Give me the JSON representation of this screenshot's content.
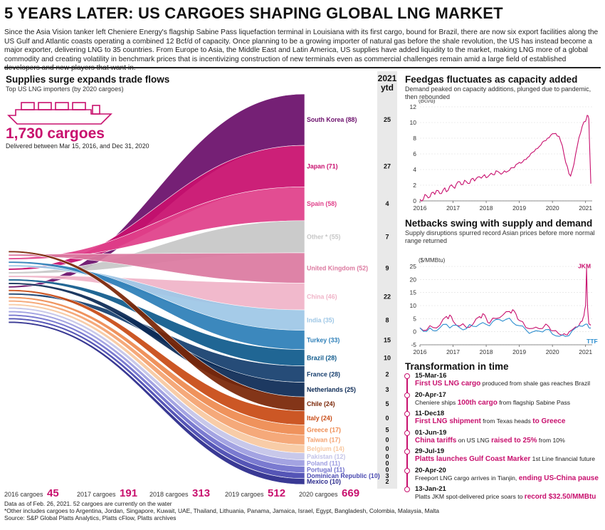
{
  "header": {
    "title": "5 YEARS LATER: US CARGOES SHAPING GLOBAL LNG MARKET",
    "intro": "Since the Asia Vision tanker left Cheniere Energy's flagship Sabine Pass liquefaction terminal in Louisiana with its first cargo, bound for Brazil, there are now six export facilities along the US Gulf and Atlantic coasts operating a combined 12 Bcf/d of capacity. Once planning to be a growing importer of natural gas before the shale revolution, the US has instead become a major exporter, delivering LNG to 35 countries. From Europe to Asia, the Middle East and Latin America, US supplies have added liquidity to the market, making LNG more of a global commodity and creating volatility in benchmark prices that is incentivizing construction of new terminals even as commercial challenges remain amid a large field of established developers and new players that want in."
  },
  "sankey": {
    "title": "Supplies surge expands trade flows",
    "subtitle": "Top US LNG importers (by 2020 cargoes)",
    "total": "1,730 cargoes",
    "total_note": "Delivered between Mar 15, 2016, and Dec 31, 2020",
    "ytd_header": "2021 ytd"
  },
  "chart_data": [
    {
      "type": "area",
      "chart": "sankey",
      "title": "Supplies surge expands trade flows",
      "years": [
        {
          "label": "2016 cargoes",
          "value": "45"
        },
        {
          "label": "2017 cargoes",
          "value": "191"
        },
        {
          "label": "2018 cargoes",
          "value": "313"
        },
        {
          "label": "2019 cargoes",
          "value": "512"
        },
        {
          "label": "2020 cargoes",
          "value": "669"
        }
      ],
      "countries": [
        {
          "name": "South Korea",
          "value": 88,
          "ytd": "25",
          "label": "South Korea (88)",
          "color": "#6b0f6b",
          "start": 10
        },
        {
          "name": "Japan",
          "value": 71,
          "ytd": "27",
          "label": "Japan (71)",
          "color": "#c80f6e",
          "start": 5
        },
        {
          "name": "Spain",
          "value": 58,
          "ytd": "4",
          "label": "Spain (58)",
          "color": "#e0408a",
          "start": 2
        },
        {
          "name": "Other",
          "value": 55,
          "ytd": "7",
          "label": "Other * (55)",
          "color": "#c7c7c7",
          "start": 6
        },
        {
          "name": "United Kingdom",
          "value": 52,
          "ytd": "9",
          "label": "United Kingdom (52)",
          "color": "#dc7aa0",
          "start": 1
        },
        {
          "name": "China",
          "value": 46,
          "ytd": "22",
          "label": "China (46)",
          "color": "#f0b4c8",
          "start": 7
        },
        {
          "name": "India",
          "value": 35,
          "ytd": "8",
          "label": "India (35)",
          "color": "#9ec7e6",
          "start": 4
        },
        {
          "name": "Turkey",
          "value": 33,
          "ytd": "15",
          "label": "Turkey (33)",
          "color": "#2d7fb8",
          "start": 3
        },
        {
          "name": "Brazil",
          "value": 28,
          "ytd": "10",
          "label": "Brazil (28)",
          "color": "#0f5a8c",
          "start": 8
        },
        {
          "name": "France",
          "value": 28,
          "ytd": "2",
          "label": "France (28)",
          "color": "#163e6e",
          "start": 12
        },
        {
          "name": "Netherlands",
          "value": 25,
          "ytd": "3",
          "label": "Netherlands (25)",
          "color": "#0c2a55",
          "start": 9
        },
        {
          "name": "Chile",
          "value": 24,
          "ytd": "5",
          "label": "Chile (24)",
          "color": "#7a2606",
          "start": 0
        },
        {
          "name": "Italy",
          "value": 24,
          "ytd": "0",
          "label": "Italy (24)",
          "color": "#c84a14",
          "start": 11
        },
        {
          "name": "Greece",
          "value": 17,
          "ytd": "5",
          "label": "Greece (17)",
          "color": "#ee8a50",
          "start": 13
        },
        {
          "name": "Taiwan",
          "value": 17,
          "ytd": "0",
          "label": "Taiwan (17)",
          "color": "#f4a270",
          "start": 14
        },
        {
          "name": "Belgium",
          "value": 14,
          "ytd": "0",
          "label": "Belgium (14)",
          "color": "#f8c8a0",
          "start": 15
        },
        {
          "name": "Pakistan",
          "value": 12,
          "ytd": "0",
          "label": "Pakistan (12)",
          "color": "#c4c4e8",
          "start": 16
        },
        {
          "name": "Poland",
          "value": 11,
          "ytd": "0",
          "label": "Poland (11)",
          "color": "#9c9ce0",
          "start": 17
        },
        {
          "name": "Portugal",
          "value": 11,
          "ytd": "0",
          "label": "Portugal (11)",
          "color": "#7070cc",
          "start": 18
        },
        {
          "name": "Dominican Republic",
          "value": 10,
          "ytd": "3",
          "label": "Dominican Republic (10)",
          "color": "#4848b0",
          "start": 19
        },
        {
          "name": "Mexico",
          "value": 10,
          "ytd": "2",
          "label": "Mexico (10)",
          "color": "#2a2a8c",
          "start": 20
        }
      ]
    },
    {
      "type": "line",
      "title": "Feedgas fluctuates as capacity added",
      "subtitle": "Demand peaked on capacity additions, plunged due to pandemic, then rebounded",
      "ylabel": "(Bcf/d)",
      "ylim": [
        0,
        12
      ],
      "yticks": [
        "12",
        "10",
        "8",
        "6",
        "4",
        "2",
        "0"
      ],
      "xticks": [
        "2016",
        "2017",
        "2018",
        "2019",
        "2020",
        "2021"
      ],
      "xlim": [
        2016.0,
        2021.2
      ],
      "color": "#c8106e",
      "series": [
        {
          "x": [
            2016.0,
            2016.1,
            2016.2,
            2016.3,
            2016.4,
            2016.5,
            2016.6,
            2016.7,
            2016.8,
            2016.9,
            2017.0,
            2017.1,
            2017.2,
            2017.3,
            2017.4,
            2017.5,
            2017.6,
            2017.7,
            2017.8,
            2017.9,
            2018.0,
            2018.1,
            2018.2,
            2018.3,
            2018.4,
            2018.5,
            2018.6,
            2018.7,
            2018.8,
            2018.9,
            2019.0,
            2019.1,
            2019.2,
            2019.3,
            2019.4,
            2019.5,
            2019.6,
            2019.7,
            2019.8,
            2019.9,
            2020.0,
            2020.1,
            2020.2,
            2020.3,
            2020.4,
            2020.5,
            2020.55,
            2020.6,
            2020.7,
            2020.8,
            2020.9,
            2021.0,
            2021.05,
            2021.1,
            2021.13,
            2021.16
          ],
          "y": [
            0.2,
            0.3,
            0.8,
            0.5,
            1.0,
            1.2,
            0.9,
            1.5,
            1.3,
            1.9,
            1.7,
            2.0,
            2.4,
            2.2,
            2.6,
            2.3,
            2.8,
            2.7,
            3.0,
            3.2,
            3.1,
            3.4,
            3.3,
            3.7,
            3.5,
            3.6,
            3.8,
            4.0,
            4.2,
            4.5,
            4.8,
            5.0,
            5.4,
            5.8,
            6.2,
            6.5,
            6.8,
            7.5,
            7.8,
            8.2,
            8.6,
            8.5,
            8.1,
            7.0,
            5.0,
            3.6,
            3.2,
            3.8,
            5.8,
            8.0,
            9.6,
            10.3,
            11.0,
            10.4,
            6.0,
            2.2
          ]
        }
      ]
    },
    {
      "type": "line",
      "title": "Netbacks swing with supply and demand",
      "subtitle": "Supply disruptions spurred record Asian prices before more normal range returned",
      "ylabel": "($/MMBtu)",
      "ylim": [
        -5,
        25
      ],
      "yticks": [
        "25",
        "20",
        "15",
        "10",
        "5",
        "0",
        "-5"
      ],
      "xticks": [
        "2016",
        "2017",
        "2018",
        "2019",
        "2020",
        "2021"
      ],
      "xlim": [
        2016.0,
        2021.2
      ],
      "series": [
        {
          "name": "JKM",
          "color": "#c8106e",
          "x": [
            2016.0,
            2016.2,
            2016.4,
            2016.6,
            2016.8,
            2016.9,
            2017.0,
            2017.2,
            2017.4,
            2017.6,
            2017.8,
            2017.9,
            2018.0,
            2018.1,
            2018.3,
            2018.5,
            2018.7,
            2018.8,
            2018.9,
            2019.0,
            2019.2,
            2019.4,
            2019.6,
            2019.8,
            2019.9,
            2020.0,
            2020.2,
            2020.3,
            2020.4,
            2020.5,
            2020.7,
            2020.8,
            2020.9,
            2020.95,
            2021.0,
            2021.03,
            2021.06,
            2021.1,
            2021.16
          ],
          "y": [
            1.5,
            1.0,
            2.0,
            2.5,
            5.5,
            6.0,
            4.0,
            2.5,
            2.0,
            3.0,
            5.5,
            6.5,
            5.0,
            3.5,
            5.5,
            6.5,
            7.5,
            8.0,
            6.5,
            4.5,
            2.0,
            1.5,
            1.0,
            2.5,
            1.5,
            0.5,
            -0.5,
            -1.0,
            -1.2,
            -0.5,
            1.5,
            2.5,
            4.5,
            6.5,
            10.0,
            24.0,
            9.0,
            3.0,
            2.5
          ]
        },
        {
          "name": "TTF",
          "color": "#2d8fd0",
          "x": [
            2016.0,
            2016.2,
            2016.4,
            2016.6,
            2016.8,
            2017.0,
            2017.2,
            2017.4,
            2017.6,
            2017.8,
            2018.0,
            2018.2,
            2018.4,
            2018.6,
            2018.8,
            2019.0,
            2019.2,
            2019.4,
            2019.6,
            2019.8,
            2020.0,
            2020.2,
            2020.4,
            2020.6,
            2020.8,
            2021.0,
            2021.1,
            2021.16
          ],
          "y": [
            1.5,
            0.5,
            0.8,
            1.5,
            2.5,
            2.0,
            1.5,
            1.5,
            2.5,
            3.0,
            2.5,
            3.5,
            4.5,
            5.0,
            4.0,
            2.5,
            0.5,
            -0.5,
            0.0,
            1.0,
            -0.5,
            -1.5,
            -2.0,
            0.0,
            2.0,
            3.0,
            2.0,
            1.5
          ]
        }
      ]
    }
  ],
  "timeline": {
    "title": "Transformation in time",
    "items": [
      {
        "date": "15-Mar-16",
        "parts": [
          {
            "t": "First US LNG cargo",
            "c": "pink"
          },
          {
            "t": " produced from shale gas reaches Brazil",
            "c": "plain"
          }
        ]
      },
      {
        "date": "20-Apr-17",
        "parts": [
          {
            "t": "Cheniere ships ",
            "c": "plain"
          },
          {
            "t": "100th cargo",
            "c": "pink"
          },
          {
            "t": " from flagship Sabine Pass",
            "c": "plain"
          }
        ]
      },
      {
        "date": "11-Dec18",
        "parts": [
          {
            "t": "First LNG shipment",
            "c": "pink"
          },
          {
            "t": " from Texas heads ",
            "c": "plain"
          },
          {
            "t": "to Greece",
            "c": "pink"
          }
        ]
      },
      {
        "date": "01-Jun-19",
        "parts": [
          {
            "t": "China tariffs",
            "c": "pink"
          },
          {
            "t": " on US LNG ",
            "c": "plain"
          },
          {
            "t": "raised to 25%",
            "c": "pink"
          },
          {
            "t": " from 10%",
            "c": "plain"
          }
        ]
      },
      {
        "date": "29-Jul-19",
        "parts": [
          {
            "t": "Platts launches Gulf Coast Marker",
            "c": "pink"
          },
          {
            "t": " 1st Line financial future",
            "c": "plain"
          }
        ]
      },
      {
        "date": "20-Apr-20",
        "parts": [
          {
            "t": "Freeport LNG cargo arrives in Tianjin, ",
            "c": "plain"
          },
          {
            "t": "ending US-China pause",
            "c": "pink"
          }
        ]
      },
      {
        "date": "13-Jan-21",
        "parts": [
          {
            "t": "Platts JKM spot-delivered price soars to ",
            "c": "plain"
          },
          {
            "t": "record $32.50/MMBtu",
            "c": "pink"
          }
        ]
      }
    ]
  },
  "footer": {
    "line1": "Data as of Feb. 26, 2021. 52 cargoes are currently on the water",
    "line2": "*Other includes cargoes to Argentina, Jordan, Singapore, Kuwait, UAE, Thailand, Lithuania, Panama, Jamaica, Israel, Egypt, Bangladesh, Colombia, Malaysia, Malta",
    "line3": "Source: S&P Global Platts Analytics, Platts cFlow, Platts archives"
  },
  "colors": {
    "accent": "#c8106e",
    "ttf": "#2d8fd0",
    "ytd_bg": "#e9e9e9"
  }
}
